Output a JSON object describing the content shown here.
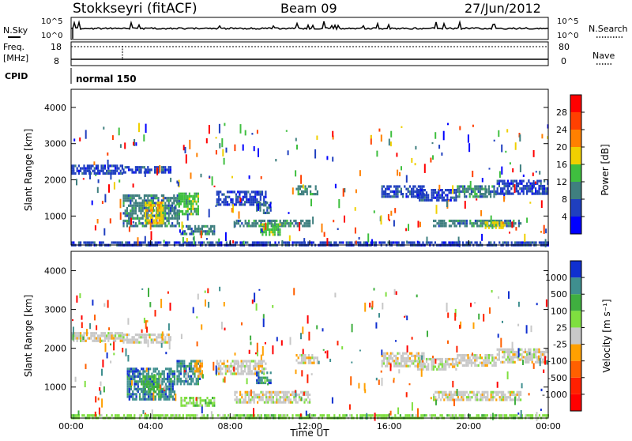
{
  "header": {
    "radar": "Stokkseyri (fitACF)",
    "beam": "Beam 09",
    "date": "27/Jun/2012"
  },
  "aux_panels": {
    "nsky_label": "N.Sky",
    "nsky_ticks": [
      "10^5",
      "10^0"
    ],
    "nsearch_label": "N.Search",
    "freq_label_1": "Freq.",
    "freq_label_2": "[MHz]",
    "freq_ticks": [
      "18",
      "8"
    ],
    "nave_label": "Nave",
    "nave_ticks": [
      "80",
      "0"
    ],
    "cpid_label": "CPID",
    "cpid_value": "normal 150"
  },
  "chart_data": [
    {
      "type": "heatmap",
      "name": "power",
      "ylabel": "Slant Range [km]",
      "xlabel": "",
      "xlim": [
        0,
        24
      ],
      "ylim": [
        200,
        4500
      ],
      "yticks": [
        "1000",
        "2000",
        "3000",
        "4000"
      ],
      "colorbar": {
        "label": "Power [dB]",
        "ticks": [
          "4",
          "8",
          "12",
          "16",
          "20",
          "24",
          "28"
        ],
        "colors": [
          "#0000ff",
          "#1f3fbf",
          "#3f7f7f",
          "#3fbf3f",
          "#f0d000",
          "#ff8000",
          "#ff4000",
          "#ff0000"
        ]
      },
      "regions": [
        {
          "t0": 0.0,
          "t1": 2.6,
          "r0": 2180,
          "r1": 2420,
          "level": 1
        },
        {
          "t0": 2.6,
          "t1": 5.0,
          "r0": 2180,
          "r1": 2380,
          "level": 1
        },
        {
          "t0": 2.6,
          "t1": 5.4,
          "r0": 700,
          "r1": 1600,
          "level": 2
        },
        {
          "t0": 3.7,
          "t1": 4.6,
          "r0": 800,
          "r1": 1400,
          "level": 4
        },
        {
          "t0": 5.3,
          "t1": 6.4,
          "r0": 1050,
          "r1": 1650,
          "level": 3
        },
        {
          "t0": 5.5,
          "t1": 7.2,
          "r0": 500,
          "r1": 750,
          "level": 2
        },
        {
          "t0": 7.3,
          "t1": 9.8,
          "r0": 1350,
          "r1": 1700,
          "level": 1
        },
        {
          "t0": 9.3,
          "t1": 10.0,
          "r0": 1100,
          "r1": 1400,
          "level": 2
        },
        {
          "t0": 8.2,
          "t1": 12.0,
          "r0": 700,
          "r1": 900,
          "level": 2
        },
        {
          "t0": 9.5,
          "t1": 10.5,
          "r0": 500,
          "r1": 800,
          "level": 3
        },
        {
          "t0": 11.3,
          "t1": 12.4,
          "r0": 1600,
          "r1": 1850,
          "level": 2
        },
        {
          "t0": 15.6,
          "t1": 17.7,
          "r0": 1550,
          "r1": 1850,
          "level": 1
        },
        {
          "t0": 17.4,
          "t1": 19.4,
          "r0": 1450,
          "r1": 1750,
          "level": 1
        },
        {
          "t0": 19.4,
          "t1": 21.4,
          "r0": 1550,
          "r1": 1850,
          "level": 2
        },
        {
          "t0": 21.4,
          "t1": 24.0,
          "r0": 1650,
          "r1": 2000,
          "level": 1
        },
        {
          "t0": 18.2,
          "t1": 22.6,
          "r0": 700,
          "r1": 900,
          "level": 2
        },
        {
          "t0": 20.8,
          "t1": 21.8,
          "r0": 700,
          "r1": 850,
          "level": 4
        },
        {
          "t0": 0.0,
          "t1": 24.0,
          "r0": 200,
          "r1": 300,
          "level": 1
        }
      ]
    },
    {
      "type": "heatmap",
      "name": "velocity",
      "ylabel": "Slant Range [km]",
      "xlabel": "Time UT",
      "xlim": [
        0,
        24
      ],
      "ylim": [
        200,
        4500
      ],
      "xticks": [
        "00:00",
        "04:00",
        "08:00",
        "12:00",
        "16:00",
        "20:00",
        "00:00"
      ],
      "yticks": [
        "1000",
        "2000",
        "3000",
        "4000"
      ],
      "colorbar": {
        "label": "Velocity [m s⁻¹]",
        "ticks": [
          "1000",
          "500",
          "100",
          "25",
          "-25",
          "-100",
          "-500",
          "-1000"
        ],
        "colors": [
          "#1030d0",
          "#3f8f8f",
          "#3faf3f",
          "#7fdf3f",
          "#c8c8c8",
          "#ffa000",
          "#ff6000",
          "#ff2000",
          "#ff0000"
        ]
      },
      "regions": [
        {
          "t0": 0.0,
          "t1": 2.6,
          "r0": 2180,
          "r1": 2420,
          "level": 4
        },
        {
          "t0": 2.6,
          "t1": 5.0,
          "r0": 2180,
          "r1": 2380,
          "level": 4
        },
        {
          "t0": 2.8,
          "t1": 5.2,
          "r0": 700,
          "r1": 1500,
          "level": 1
        },
        {
          "t0": 3.6,
          "t1": 4.4,
          "r0": 900,
          "r1": 1300,
          "level": 2
        },
        {
          "t0": 5.3,
          "t1": 6.5,
          "r0": 1100,
          "r1": 1700,
          "level": 1
        },
        {
          "t0": 6.2,
          "t1": 6.6,
          "r0": 1300,
          "r1": 1700,
          "level": 5
        },
        {
          "t0": 5.5,
          "t1": 7.2,
          "r0": 500,
          "r1": 750,
          "level": 3
        },
        {
          "t0": 7.3,
          "t1": 9.8,
          "r0": 1350,
          "r1": 1700,
          "level": 4
        },
        {
          "t0": 9.3,
          "t1": 10.0,
          "r0": 1100,
          "r1": 1400,
          "level": 1
        },
        {
          "t0": 8.2,
          "t1": 12.0,
          "r0": 600,
          "r1": 900,
          "level": 4
        },
        {
          "t0": 11.3,
          "t1": 12.4,
          "r0": 1600,
          "r1": 1850,
          "level": 4
        },
        {
          "t0": 15.6,
          "t1": 17.7,
          "r0": 1550,
          "r1": 1900,
          "level": 4
        },
        {
          "t0": 17.4,
          "t1": 19.4,
          "r0": 1450,
          "r1": 1750,
          "level": 4
        },
        {
          "t0": 19.4,
          "t1": 21.4,
          "r0": 1550,
          "r1": 1850,
          "level": 4
        },
        {
          "t0": 21.4,
          "t1": 24.0,
          "r0": 1650,
          "r1": 2000,
          "level": 4
        },
        {
          "t0": 18.2,
          "t1": 22.6,
          "r0": 700,
          "r1": 900,
          "level": 4
        },
        {
          "t0": 0.0,
          "t1": 24.0,
          "r0": 200,
          "r1": 300,
          "level": 3
        }
      ]
    }
  ]
}
